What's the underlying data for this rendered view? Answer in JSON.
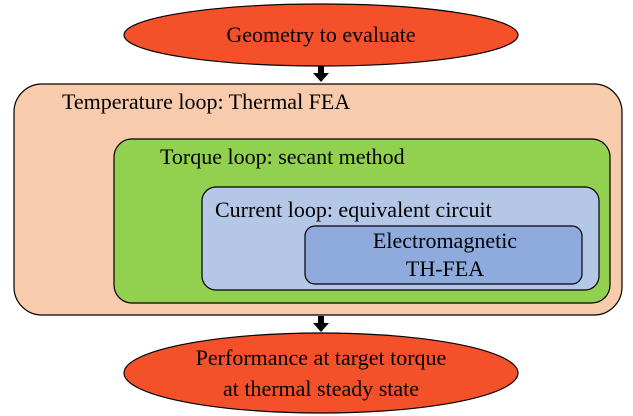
{
  "nodes": [
    {
      "label": "Geometry to evaluate"
    },
    {
      "label": "Temperature loop: Thermal FEA"
    },
    {
      "label": "Torque loop: secant method"
    },
    {
      "label": "Current loop: equivalent circuit"
    },
    {
      "lines": [
        "Electromagnetic",
        "TH-FEA"
      ]
    },
    {
      "lines": [
        "Performance at target torque",
        "at thermal steady state"
      ]
    }
  ]
}
